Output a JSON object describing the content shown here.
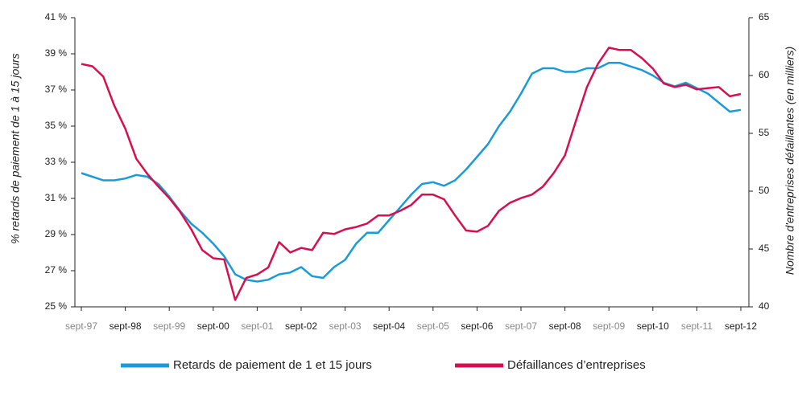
{
  "chart_data": {
    "type": "line",
    "y_label": "% retards de paiement de 1 à 15 jours",
    "y2_label": "Nombre d'entreprises défaillantes (en milliers)",
    "categories": [
      "sept-97",
      null,
      null,
      null,
      "sept-98",
      null,
      null,
      null,
      "sept-99",
      null,
      null,
      null,
      "sept-00",
      null,
      null,
      null,
      "sept-01",
      null,
      null,
      null,
      "sept-02",
      null,
      null,
      null,
      "sept-03",
      null,
      null,
      null,
      "sept-04",
      null,
      null,
      null,
      "sept-05",
      null,
      null,
      null,
      "sept-06",
      null,
      null,
      null,
      "sept-07",
      null,
      null,
      null,
      "sept-08",
      null,
      null,
      null,
      "sept-09",
      null,
      null,
      null,
      "sept-10",
      null,
      null,
      null,
      "sept-11",
      null,
      null,
      null,
      "sept-12"
    ],
    "series": [
      {
        "name": "Retards de paiement de 1 et 15 jours",
        "color": "#1a9bd7",
        "axis": "y",
        "values": [
          32.4,
          32.2,
          32.0,
          32.0,
          32.1,
          32.3,
          32.2,
          31.8,
          31.1,
          30.3,
          29.6,
          29.1,
          28.5,
          27.8,
          26.8,
          26.5,
          26.4,
          26.5,
          26.8,
          26.9,
          27.2,
          26.7,
          26.6,
          27.2,
          27.6,
          28.5,
          29.1,
          29.1,
          29.8,
          30.5,
          31.2,
          31.8,
          31.9,
          31.7,
          32.0,
          32.6,
          33.3,
          34.0,
          35.0,
          35.8,
          36.8,
          37.9,
          38.2,
          38.2,
          38.0,
          38.0,
          38.2,
          38.2,
          38.5,
          38.5,
          38.3,
          38.1,
          37.8,
          37.4,
          37.2,
          37.4,
          37.1,
          36.8,
          36.3,
          35.8,
          35.9
        ]
      },
      {
        "name": "Défaillances d’entreprises",
        "color": "#d6104f",
        "axis": "y2",
        "values": [
          61.0,
          60.8,
          59.9,
          57.4,
          55.4,
          52.8,
          51.5,
          50.4,
          49.4,
          48.2,
          46.7,
          44.9,
          44.2,
          44.1,
          40.6,
          42.5,
          42.8,
          43.4,
          45.6,
          44.7,
          45.1,
          44.9,
          46.4,
          46.3,
          46.7,
          46.9,
          47.2,
          47.9,
          47.9,
          48.3,
          48.8,
          49.7,
          49.7,
          49.3,
          47.9,
          46.6,
          46.5,
          47.0,
          48.3,
          49.0,
          49.4,
          49.7,
          50.4,
          51.6,
          53.1,
          56.1,
          59.0,
          61.0,
          62.4,
          62.2,
          62.2,
          61.5,
          60.6,
          59.3,
          59.0,
          59.2,
          58.8,
          58.9,
          59.0,
          58.2,
          58.4
        ]
      }
    ],
    "ylim": [
      25,
      41
    ],
    "yticks": [
      {
        "value": 25,
        "label": "25 %"
      },
      {
        "value": 27,
        "label": "27 %"
      },
      {
        "value": 29,
        "label": "29 %"
      },
      {
        "value": 31,
        "label": "31 %"
      },
      {
        "value": 33,
        "label": "33 %"
      },
      {
        "value": 35,
        "label": "35 %"
      },
      {
        "value": 37,
        "label": "37 %"
      },
      {
        "value": 39,
        "label": "39 %"
      },
      {
        "value": 41,
        "label": "41 %"
      }
    ],
    "y2lim": [
      40,
      65
    ],
    "y2ticks": [
      40,
      45,
      50,
      55,
      60,
      65
    ],
    "legend": "bottom"
  }
}
